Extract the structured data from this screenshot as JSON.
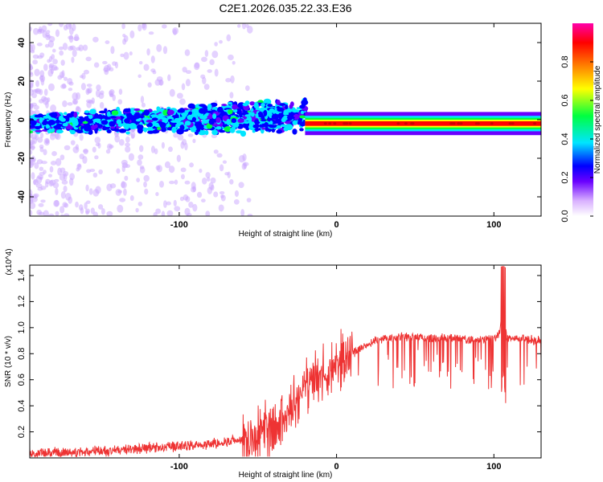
{
  "title": "C2E1.2026.035.22.33.E36",
  "chart_data": [
    {
      "type": "heatmap",
      "id": "spectrogram",
      "xlabel": "Height of straight line (km)",
      "ylabel": "Frequency (Hz)",
      "xlim": [
        -195,
        130
      ],
      "ylim": [
        -50,
        50
      ],
      "x_ticks": [
        -100,
        0,
        100
      ],
      "x_tick_labels": [
        "-100",
        "0",
        "100"
      ],
      "y_ticks": [
        -40,
        -20,
        0,
        20,
        40
      ],
      "y_tick_labels": [
        "-40",
        "-20",
        "0",
        "20",
        "40"
      ],
      "colorbar": {
        "label": "Normalized spectral amplitude",
        "range": [
          0,
          1
        ],
        "ticks": [
          0.0,
          0.2,
          0.4,
          0.6,
          0.8
        ],
        "tick_labels": [
          "0.0",
          "0.2",
          "0.4",
          "0.6",
          "0.8"
        ],
        "colors": [
          "#ffffff",
          "#6a00ff",
          "#0000ff",
          "#00e5ff",
          "#00ff40",
          "#ffff00",
          "#ff7f00",
          "#ff0000",
          "#ff00aa"
        ]
      },
      "features": [
        {
          "name": "noise-cloud",
          "x_range": [
            -195,
            -20
          ],
          "freq_center": -2,
          "freq_half_width": 8
        },
        {
          "name": "carrier-line",
          "x_range": [
            -20,
            130
          ],
          "freq_center": -2,
          "freq_half_width": 2
        }
      ]
    },
    {
      "type": "line",
      "id": "snr",
      "xlabel": "Height of straight line (km)",
      "ylabel": "SNR (10 * v/v)",
      "y_scale_label": "(x10^4)",
      "xlim": [
        -195,
        130
      ],
      "ylim": [
        0,
        1.48
      ],
      "x_ticks": [
        -100,
        0,
        100
      ],
      "x_tick_labels": [
        "-100",
        "0",
        "100"
      ],
      "y_ticks": [
        0.2,
        0.4,
        0.6,
        0.8,
        1.0,
        1.2,
        1.4
      ],
      "y_tick_labels": [
        "0.2",
        "0.4",
        "0.6",
        "0.8",
        "1.0",
        "1.2",
        "1.4"
      ],
      "line_color": "#ee3333",
      "series": [
        {
          "name": "SNR",
          "x": [
            -195,
            -175,
            -150,
            -125,
            -100,
            -80,
            -60,
            -50,
            -40,
            -35,
            -30,
            -25,
            -20,
            -15,
            -10,
            -5,
            0,
            5,
            10,
            15,
            20,
            25,
            30,
            40,
            50,
            60,
            70,
            80,
            90,
            100,
            104,
            106,
            108,
            115,
            120,
            130
          ],
          "y": [
            0.03,
            0.04,
            0.05,
            0.07,
            0.09,
            0.11,
            0.14,
            0.18,
            0.24,
            0.28,
            0.35,
            0.42,
            0.5,
            0.56,
            0.62,
            0.66,
            0.7,
            0.75,
            0.8,
            0.84,
            0.88,
            0.9,
            0.92,
            0.93,
            0.93,
            0.92,
            0.92,
            0.91,
            0.91,
            0.92,
            0.96,
            1.3,
            0.92,
            0.92,
            0.91,
            0.9
          ]
        }
      ]
    }
  ]
}
